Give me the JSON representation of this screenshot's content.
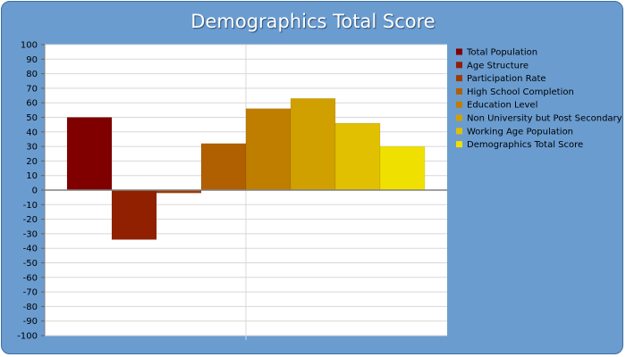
{
  "chart_data": {
    "type": "bar",
    "title": "Demographics Total Score",
    "xlabel": "",
    "ylabel": "",
    "ylim": [
      -100,
      100
    ],
    "ytick_step": 10,
    "grid": true,
    "legend_position": "right",
    "series": [
      {
        "name": "Total Population",
        "value": 50,
        "color": "#800000"
      },
      {
        "name": "Age Structure",
        "value": -34,
        "color": "#912000"
      },
      {
        "name": "Participation Rate",
        "value": -2,
        "color": "#a03a00"
      },
      {
        "name": "High School Completion",
        "value": 32,
        "color": "#b06000"
      },
      {
        "name": "Education Level",
        "value": 56,
        "color": "#c07e00"
      },
      {
        "name": "Non University but Post Secondary",
        "value": 63,
        "color": "#d0a000"
      },
      {
        "name": "Working Age Population",
        "value": 46,
        "color": "#e0c000"
      },
      {
        "name": "Demographics Total Score",
        "value": 30,
        "color": "#f0e000"
      }
    ]
  }
}
